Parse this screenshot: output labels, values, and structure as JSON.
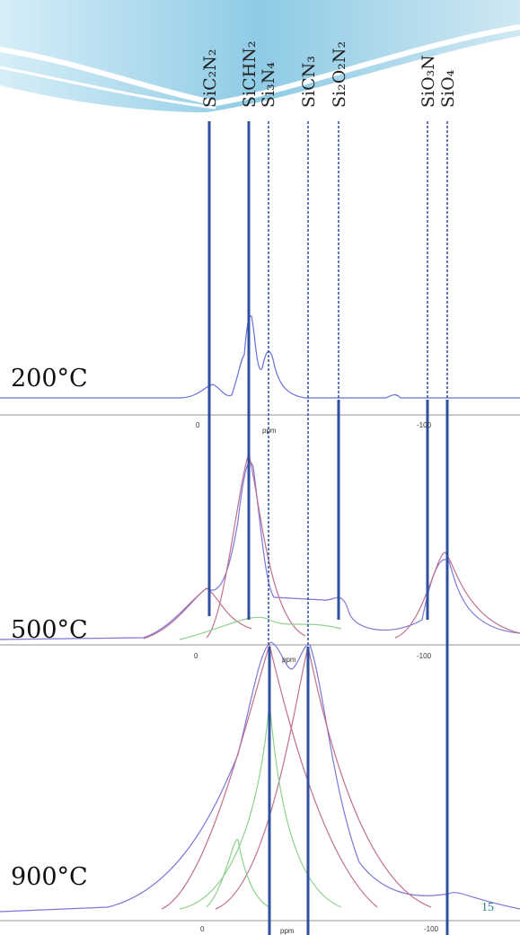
{
  "line_labels": [
    "SiC₂N₂",
    "SiCHN₂",
    "Si₃N₄",
    "SiCN₃",
    "Si₂O₂N₂",
    "SiO₃N",
    "SiO₄"
  ],
  "panels": [
    {
      "temperature": "200°C",
      "tick_zero": "0",
      "tick_minus": "-100",
      "axis_title": "ppm"
    },
    {
      "temperature": "500°C",
      "tick_zero": "0",
      "tick_minus": "-100",
      "axis_title": "ppm"
    },
    {
      "temperature": "900°C",
      "tick_zero": "0",
      "tick_minus": "-100",
      "axis_title": "ppm"
    }
  ],
  "page_number": "15"
}
